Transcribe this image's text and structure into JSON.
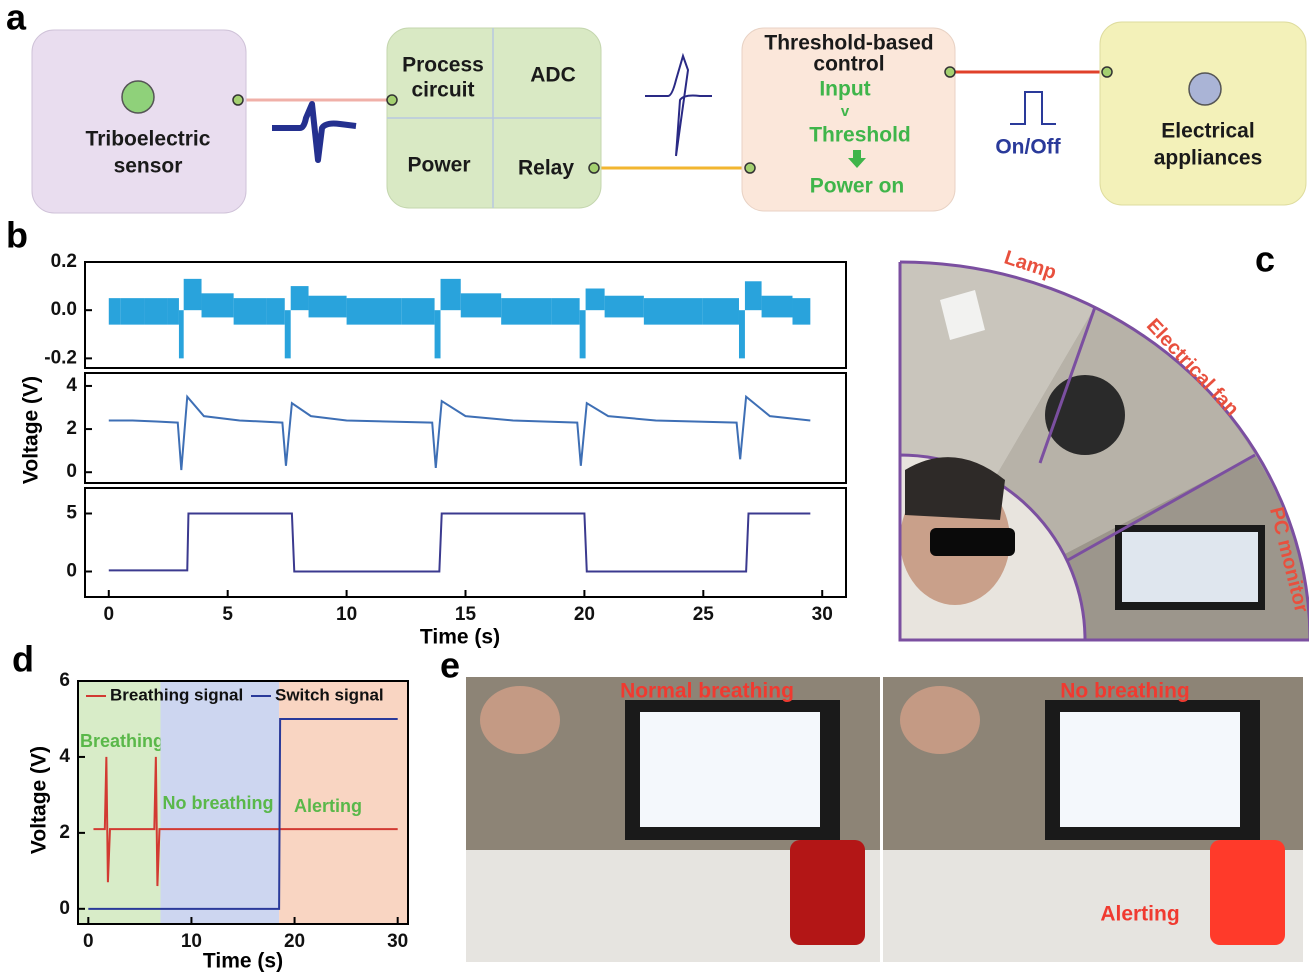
{
  "panel_labels": [
    "a",
    "b",
    "c",
    "d",
    "e"
  ],
  "diagram": {
    "sensor": {
      "lines": [
        "Triboelectric",
        "sensor"
      ]
    },
    "circuit": {
      "cells": [
        [
          "Process",
          "circuit"
        ],
        [
          "ADC"
        ],
        [
          "Power"
        ],
        [
          "Relay"
        ]
      ]
    },
    "control": {
      "title": [
        "Threshold-based",
        "control"
      ],
      "logic": [
        "Input",
        "v",
        "Threshold",
        "Power on"
      ]
    },
    "signal": "On/Off",
    "appliances": {
      "lines": [
        "Electrical",
        "appliances"
      ]
    }
  },
  "photos_c": {
    "labels": [
      "Lamp",
      "Electrical fan",
      "PC monitor"
    ]
  },
  "photos_e": {
    "labels": [
      "Normal breathing",
      "No breathing",
      "Alerting"
    ]
  },
  "chart_data": [
    {
      "type": "band",
      "color": "#29a3dc",
      "x": [
        0,
        1,
        2,
        2.9,
        3.0,
        3.3,
        4.5,
        6,
        7.3,
        7.5,
        7.8,
        9,
        11,
        13.6,
        13.8,
        14.1,
        15.5,
        17.5,
        19.7,
        19.9,
        20.2,
        21.5,
        23.5,
        26.4,
        26.6,
        26.9,
        28,
        29.5
      ],
      "upper": [
        0.05,
        0.05,
        0.05,
        0.05,
        0.0,
        0.13,
        0.07,
        0.05,
        0.05,
        0.0,
        0.1,
        0.06,
        0.05,
        0.05,
        0.0,
        0.13,
        0.07,
        0.05,
        0.05,
        0.0,
        0.09,
        0.06,
        0.05,
        0.05,
        0.0,
        0.12,
        0.06,
        0.05
      ],
      "lower": [
        -0.06,
        -0.06,
        -0.06,
        -0.06,
        -0.2,
        0.0,
        -0.03,
        -0.06,
        -0.06,
        -0.2,
        0.0,
        -0.03,
        -0.06,
        -0.06,
        -0.2,
        0.0,
        -0.03,
        -0.06,
        -0.06,
        -0.2,
        0.0,
        -0.03,
        -0.06,
        -0.06,
        -0.2,
        0.0,
        -0.03,
        -0.06
      ],
      "xlim": [
        -1,
        31
      ],
      "ylim": [
        -0.24,
        0.2
      ],
      "yticks": [
        -0.2,
        {
          "value": 0,
          "label": "0.0"
        },
        0.2
      ]
    },
    {
      "type": "line",
      "color": "#3e6fb5",
      "x": [
        0,
        1,
        2,
        2.9,
        3.05,
        3.3,
        4,
        5.5,
        7.3,
        7.45,
        7.7,
        8.5,
        10,
        13.6,
        13.75,
        14.0,
        15,
        17,
        19.7,
        19.85,
        20.1,
        21,
        23,
        26.4,
        26.55,
        26.8,
        27.8,
        29.5
      ],
      "values": [
        2.4,
        2.4,
        2.35,
        2.3,
        0.1,
        3.5,
        2.6,
        2.4,
        2.3,
        0.3,
        3.2,
        2.6,
        2.4,
        2.3,
        0.2,
        3.3,
        2.6,
        2.4,
        2.3,
        0.3,
        3.2,
        2.6,
        2.4,
        2.3,
        0.6,
        3.5,
        2.6,
        2.4
      ],
      "xlim": [
        -1,
        31
      ],
      "ylim": [
        -0.5,
        4.6
      ],
      "yticks": [
        0,
        2,
        4
      ],
      "ylabel": "Voltage (V)"
    },
    {
      "type": "line",
      "color": "#3b3a8f",
      "x": [
        0,
        3.3,
        3.35,
        7.7,
        7.8,
        13.9,
        14.0,
        20.0,
        20.1,
        26.8,
        26.9,
        29.5
      ],
      "values": [
        0.1,
        0.1,
        5,
        5,
        0,
        0,
        5,
        5,
        0,
        0,
        5,
        5
      ],
      "xlim": [
        -1,
        31
      ],
      "ylim": [
        -2.2,
        7.2
      ],
      "yticks": [
        0,
        5
      ],
      "xticks": [
        0,
        5,
        10,
        15,
        20,
        25,
        30
      ],
      "xlabel": "Time (s)"
    },
    {
      "type": "line",
      "series": [
        {
          "name": "Breathing signal",
          "color": "#d23a32",
          "x": [
            0.5,
            1.6,
            1.75,
            1.9,
            2.1,
            4,
            6.4,
            6.55,
            6.7,
            6.9,
            10,
            20,
            30
          ],
          "values": [
            2.1,
            2.1,
            4.0,
            0.7,
            2.1,
            2.1,
            2.1,
            4.0,
            0.6,
            2.1,
            2.1,
            2.1,
            2.1
          ]
        },
        {
          "name": "Switch signal",
          "color": "#2a3a9a",
          "x": [
            0,
            18.5,
            18.6,
            30
          ],
          "values": [
            0,
            0,
            5,
            5
          ]
        }
      ],
      "regions": [
        {
          "from": -1,
          "to": 7,
          "color": "#d8ecc8",
          "label": "Breathing"
        },
        {
          "from": 7,
          "to": 18.5,
          "color": "#cdd6f0",
          "label": "No breathing"
        },
        {
          "from": 18.5,
          "to": 31,
          "color": "#f9d5c2",
          "label": "Alerting"
        }
      ],
      "legend": "top",
      "xlim": [
        -1,
        31
      ],
      "ylim": [
        -0.4,
        6
      ],
      "xticks": [
        0,
        10,
        20,
        30
      ],
      "yticks": [
        0,
        2,
        4,
        6
      ],
      "xlabel": "Time (s)",
      "ylabel": "Voltage (V)"
    }
  ]
}
